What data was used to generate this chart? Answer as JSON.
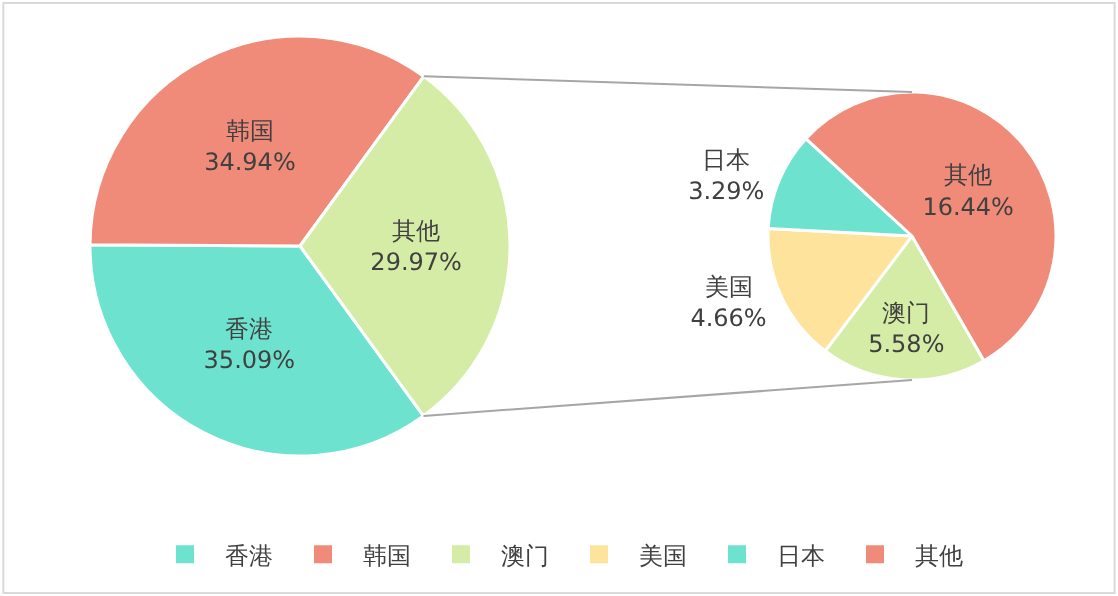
{
  "chart_data": [
    {
      "type": "pie",
      "categories": [
        "香港",
        "韩国",
        "其他"
      ],
      "values": [
        35.09,
        34.94,
        29.97
      ],
      "colors": [
        "#6de3cf",
        "#f08b7a",
        "#d4eca6"
      ],
      "value_labels": [
        "35.09%",
        "34.94%",
        "29.97%"
      ],
      "legend": "bottom"
    },
    {
      "type": "pie",
      "categories": [
        "澳门",
        "美国",
        "日本",
        "其他"
      ],
      "values": [
        5.58,
        4.66,
        3.29,
        16.44
      ],
      "colors": [
        "#d4eca6",
        "#fde39c",
        "#6de3cf",
        "#f08b7a"
      ],
      "value_labels": [
        "5.58%",
        "4.66%",
        "3.29%",
        "16.44%"
      ],
      "legend": "bottom"
    }
  ]
}
